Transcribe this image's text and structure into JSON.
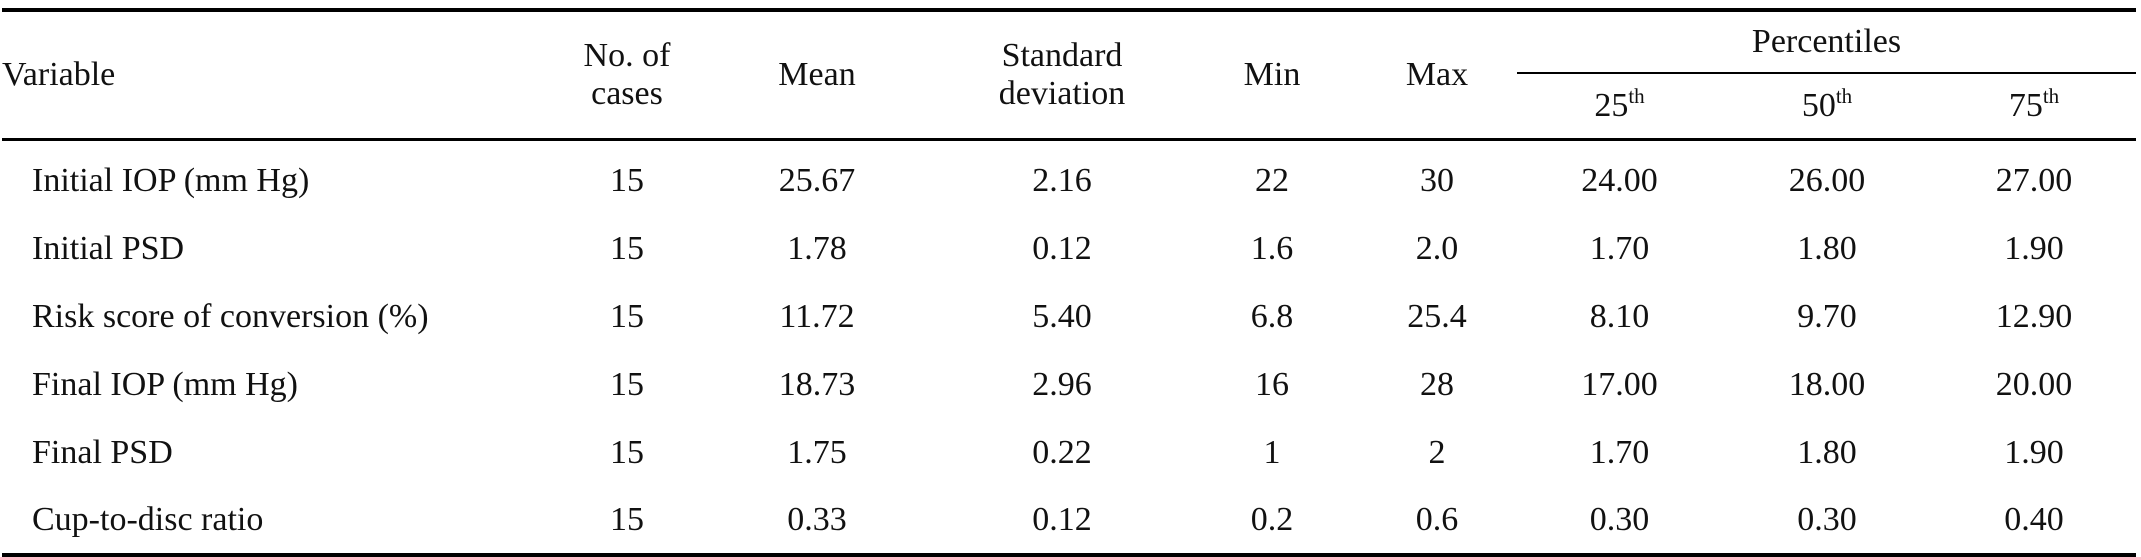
{
  "table": {
    "headers": {
      "variable": "Variable",
      "cases_line1": "No. of",
      "cases_line2": "cases",
      "mean": "Mean",
      "sd_line1": "Standard",
      "sd_line2": "deviation",
      "min": "Min",
      "max": "Max",
      "percentiles": "Percentiles",
      "p25": "25",
      "p25_sup": "th",
      "p50": "50",
      "p50_sup": "th",
      "p75": "75",
      "p75_sup": "th"
    },
    "rows": [
      {
        "variable": "Initial IOP (mm Hg)",
        "cases": "15",
        "mean": "25.67",
        "sd": "2.16",
        "min": "22",
        "max": "30",
        "p25": "24.00",
        "p50": "26.00",
        "p75": "27.00"
      },
      {
        "variable": "Initial PSD",
        "cases": "15",
        "mean": "1.78",
        "sd": "0.12",
        "min": "1.6",
        "max": "2.0",
        "p25": "1.70",
        "p50": "1.80",
        "p75": "1.90"
      },
      {
        "variable": "Risk score of conversion (%)",
        "cases": "15",
        "mean": "11.72",
        "sd": "5.40",
        "min": "6.8",
        "max": "25.4",
        "p25": "8.10",
        "p50": "9.70",
        "p75": "12.90"
      },
      {
        "variable": "Final IOP (mm Hg)",
        "cases": "15",
        "mean": "18.73",
        "sd": "2.96",
        "min": "16",
        "max": "28",
        "p25": "17.00",
        "p50": "18.00",
        "p75": "20.00"
      },
      {
        "variable": "Final PSD",
        "cases": "15",
        "mean": "1.75",
        "sd": "0.22",
        "min": "1",
        "max": "2",
        "p25": "1.70",
        "p50": "1.80",
        "p75": "1.90"
      },
      {
        "variable": "Cup-to-disc ratio",
        "cases": "15",
        "mean": "0.33",
        "sd": "0.12",
        "min": "0.2",
        "max": "0.6",
        "p25": "0.30",
        "p50": "0.30",
        "p75": "0.40"
      }
    ]
  }
}
